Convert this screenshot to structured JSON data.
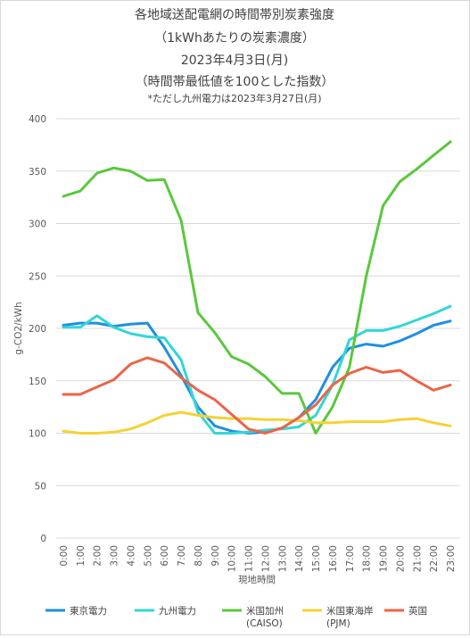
{
  "chart_data": {
    "type": "line",
    "title_lines": [
      "各地域送配電網の時間帯別炭素強度",
      "（1kWhあたりの炭素濃度）",
      "2023年4月3日(月)",
      "（時間帯最低値を100とした指数）"
    ],
    "subtitle": "*ただし九州電力は2023年3月27日(月)",
    "xlabel": "現地時間",
    "ylabel": "g-CO2/kWh",
    "ylim": [
      0,
      400
    ],
    "yticks": [
      0,
      50,
      100,
      150,
      200,
      250,
      300,
      350,
      400
    ],
    "grid": true,
    "legend_position": "bottom",
    "x": [
      "0:00",
      "1:00",
      "2:00",
      "3:00",
      "4:00",
      "5:00",
      "6:00",
      "7:00",
      "8:00",
      "9:00",
      "10:00",
      "11:00",
      "12:00",
      "13:00",
      "14:00",
      "15:00",
      "16:00",
      "17:00",
      "18:00",
      "19:00",
      "20:00",
      "21:00",
      "22:00",
      "23:00"
    ],
    "series": [
      {
        "name": "東京電力",
        "color": "#1f8fe0",
        "values": [
          203,
          205,
          205,
          202,
          204,
          205,
          182,
          155,
          125,
          107,
          102,
          100,
          101,
          105,
          115,
          132,
          163,
          181,
          185,
          183,
          188,
          195,
          203,
          207
        ]
      },
      {
        "name": "九州電力",
        "color": "#33d6d6",
        "values": [
          201,
          201,
          212,
          201,
          195,
          192,
          191,
          170,
          120,
          100,
          100,
          101,
          103,
          104,
          106,
          117,
          146,
          189,
          198,
          198,
          202,
          208,
          214,
          221
        ]
      },
      {
        "name": "米国加州\n(CAISO)",
        "color": "#5ac83c",
        "values": [
          326,
          331,
          348,
          353,
          350,
          341,
          342,
          303,
          215,
          196,
          173,
          166,
          154,
          138,
          138,
          100,
          125,
          163,
          250,
          317,
          340,
          352,
          365,
          378
        ]
      },
      {
        "name": "米国東海岸\n(PJM)",
        "color": "#f5d234",
        "values": [
          102,
          100,
          100,
          101,
          104,
          110,
          117,
          120,
          117,
          115,
          114,
          114,
          113,
          113,
          112,
          110,
          110,
          111,
          111,
          111,
          113,
          114,
          110,
          107
        ]
      },
      {
        "name": "英国",
        "color": "#ec6448",
        "values": [
          137,
          137,
          144,
          151,
          166,
          172,
          167,
          153,
          141,
          132,
          118,
          104,
          100,
          105,
          115,
          127,
          146,
          157,
          163,
          158,
          160,
          150,
          141,
          146
        ]
      }
    ]
  }
}
